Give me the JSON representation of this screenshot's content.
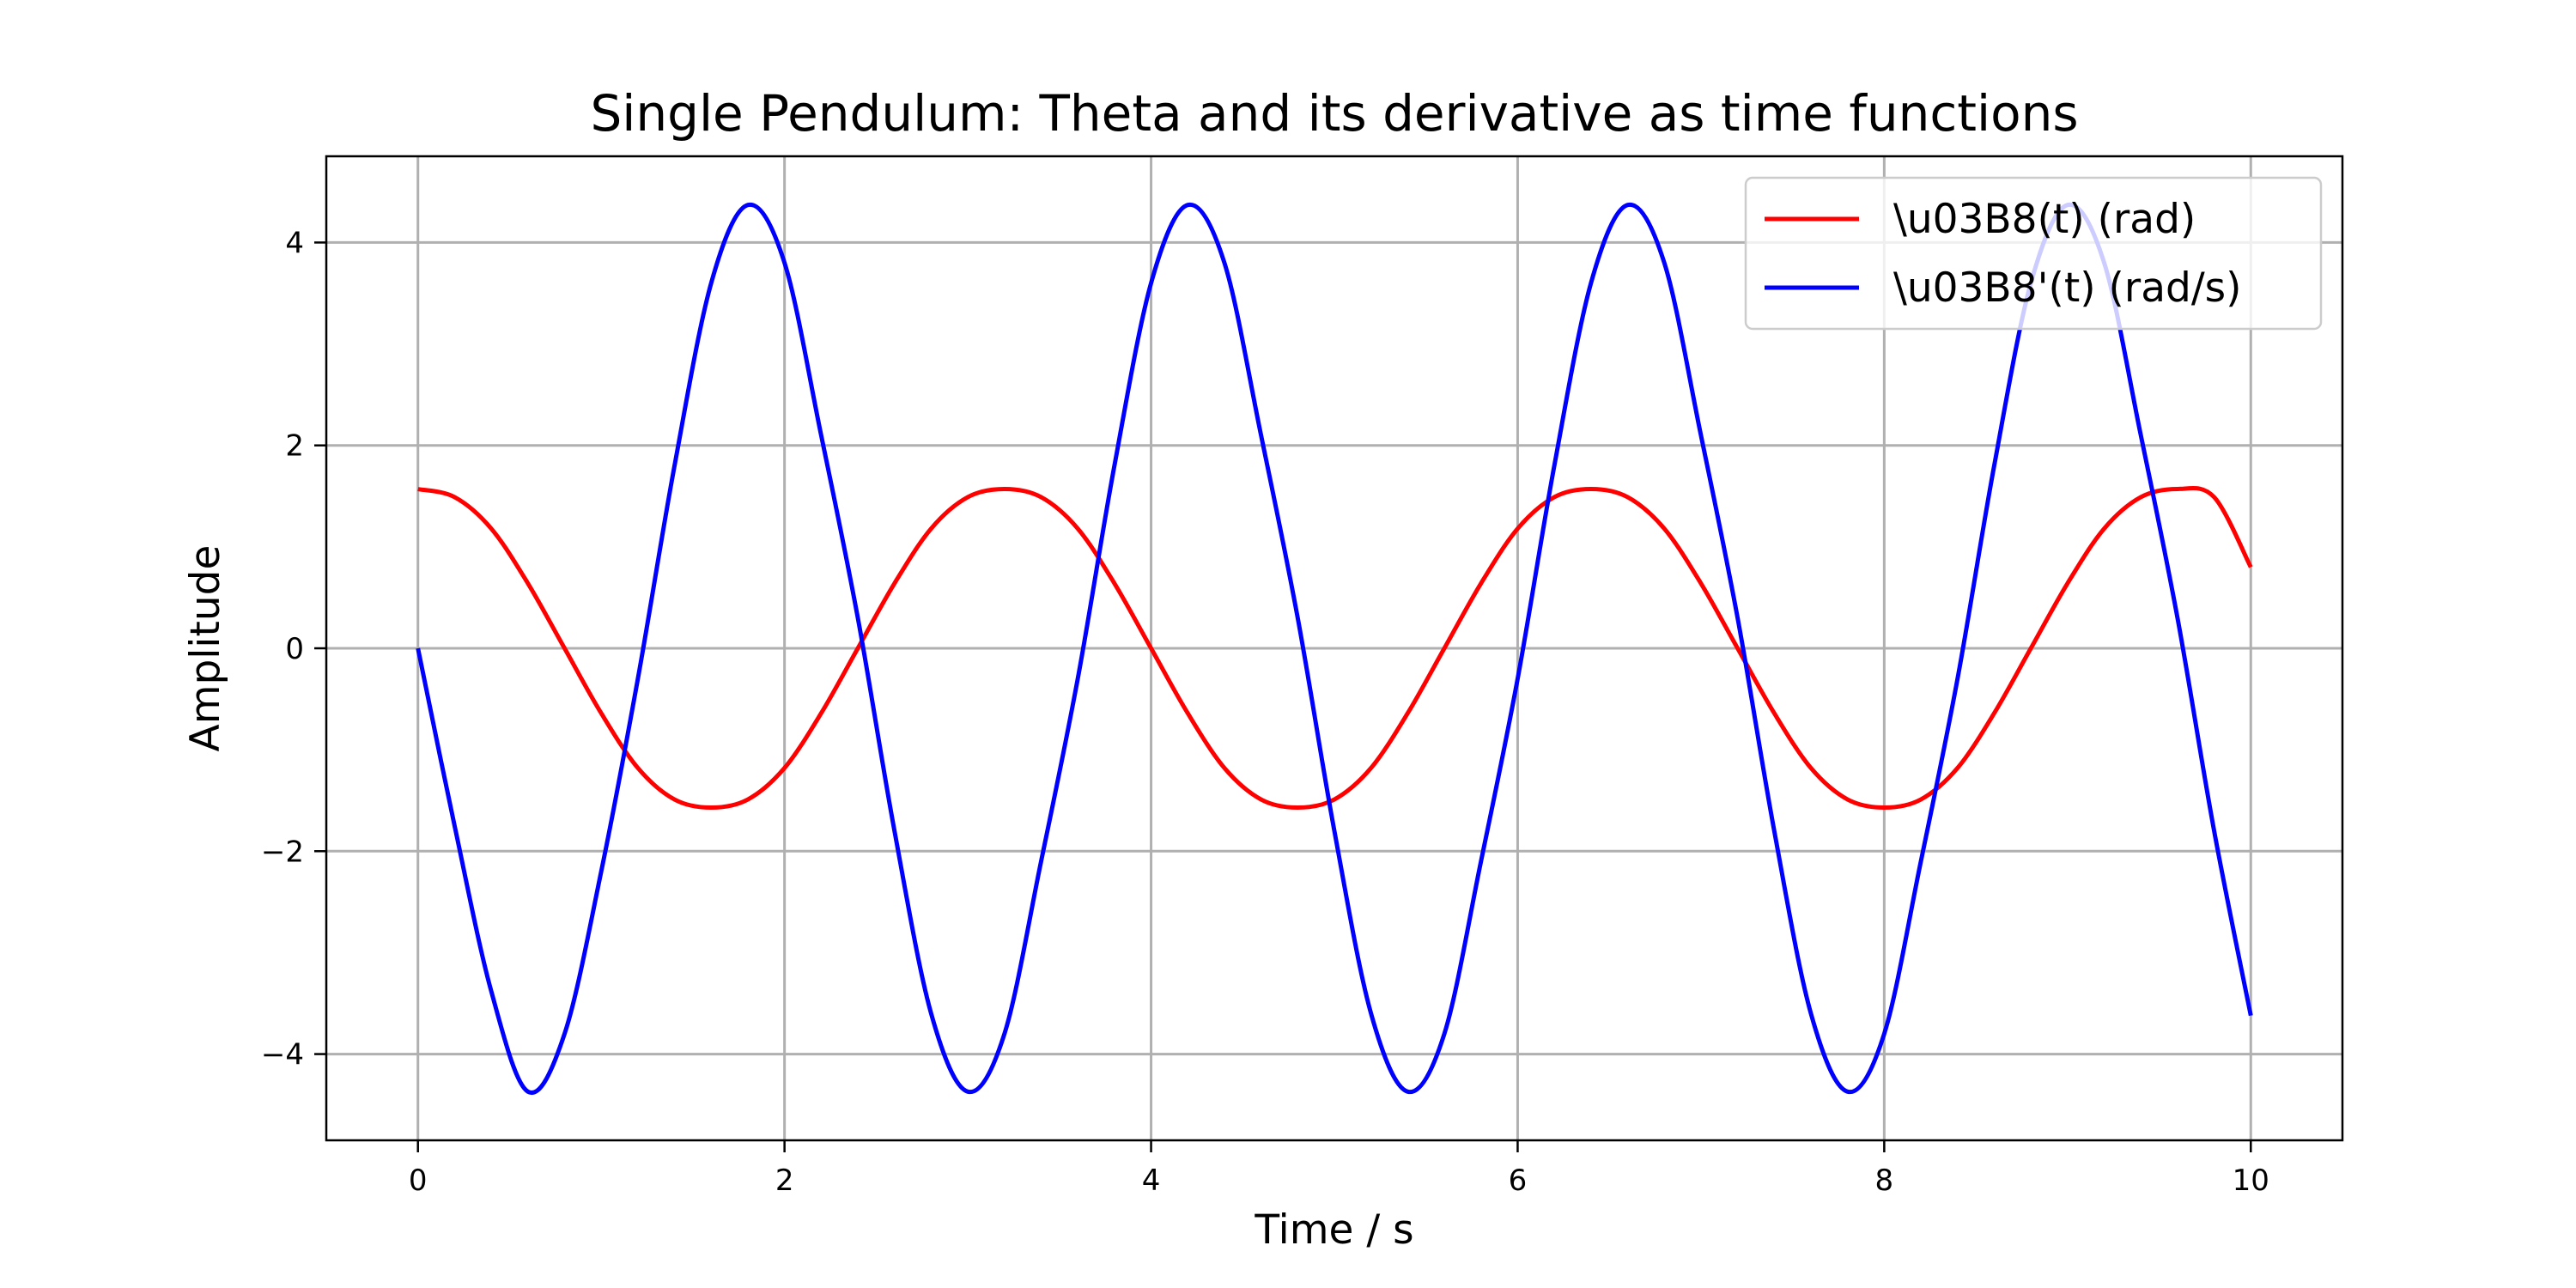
{
  "chart_data": {
    "type": "line",
    "title": "Single Pendulum: Theta and its derivative as time functions",
    "xlabel": "Time / s",
    "ylabel": "Amplitude",
    "xlim": [
      -0.5,
      10.5
    ],
    "ylim": [
      -4.85,
      4.85
    ],
    "xticks": [
      0,
      2,
      4,
      6,
      8,
      10
    ],
    "xtick_labels": [
      "0",
      "2",
      "4",
      "6",
      "8",
      "10"
    ],
    "yticks": [
      -4,
      -2,
      0,
      2,
      4
    ],
    "ytick_labels": [
      "−4",
      "−2",
      "0",
      "2",
      "4"
    ],
    "grid": true,
    "legend_position": "top-right",
    "series": [
      {
        "name": "\\u03B8(t) (rad)",
        "color": "#ff0000",
        "x": [
          0,
          0.2,
          0.4,
          0.6,
          0.8,
          1.0,
          1.2,
          1.4,
          1.6,
          1.8,
          2.0,
          2.2,
          2.4,
          2.6,
          2.8,
          3.0,
          3.2,
          3.4,
          3.6,
          3.8,
          4.0,
          4.2,
          4.4,
          4.6,
          4.8,
          5.0,
          5.2,
          5.4,
          5.6,
          5.8,
          6.0,
          6.2,
          6.4,
          6.6,
          6.8,
          7.0,
          7.2,
          7.4,
          7.6,
          7.8,
          8.0,
          8.2,
          8.4,
          8.6,
          8.8,
          9.0,
          9.2,
          9.4,
          9.6,
          9.8,
          10.0
        ],
        "y": [
          1.57,
          1.49,
          1.18,
          0.64,
          0.0,
          -0.64,
          -1.18,
          -1.49,
          -1.57,
          -1.49,
          -1.18,
          -0.64,
          0.0,
          0.64,
          1.18,
          1.49,
          1.57,
          1.49,
          1.18,
          0.64,
          0.0,
          -0.64,
          -1.18,
          -1.49,
          -1.57,
          -1.49,
          -1.18,
          -0.64,
          0.0,
          0.64,
          1.18,
          1.49,
          1.57,
          1.49,
          1.18,
          0.64,
          0.0,
          -0.64,
          -1.18,
          -1.49,
          -1.57,
          -1.49,
          -1.18,
          -0.64,
          0.0,
          0.64,
          1.18,
          1.49,
          1.57,
          1.49,
          0.8
        ]
      },
      {
        "name": "\\u03B8'(t) (rad/s)",
        "color": "#0000ff",
        "x": [
          0,
          0.2,
          0.4,
          0.6,
          0.8,
          1.0,
          1.2,
          1.4,
          1.6,
          1.8,
          2.0,
          2.2,
          2.4,
          2.6,
          2.8,
          3.0,
          3.2,
          3.4,
          3.6,
          3.8,
          4.0,
          4.2,
          4.4,
          4.6,
          4.8,
          5.0,
          5.2,
          5.4,
          5.6,
          5.8,
          6.0,
          6.2,
          6.4,
          6.6,
          6.8,
          7.0,
          7.2,
          7.4,
          7.6,
          7.8,
          8.0,
          8.2,
          8.4,
          8.6,
          8.8,
          9.0,
          9.2,
          9.4,
          9.6,
          9.8,
          10.0
        ],
        "y": [
          0.0,
          -1.75,
          -3.38,
          -4.37,
          -3.8,
          -2.2,
          -0.3,
          1.8,
          3.6,
          4.37,
          3.8,
          2.1,
          0.3,
          -1.8,
          -3.6,
          -4.37,
          -3.8,
          -2.1,
          -0.3,
          1.8,
          3.6,
          4.37,
          3.8,
          2.1,
          0.3,
          -1.8,
          -3.6,
          -4.37,
          -3.8,
          -2.1,
          -0.3,
          1.8,
          3.6,
          4.37,
          3.8,
          2.1,
          0.3,
          -1.8,
          -3.6,
          -4.37,
          -3.8,
          -2.1,
          -0.3,
          1.8,
          3.6,
          4.37,
          3.8,
          2.1,
          0.3,
          -1.8,
          -3.62
        ]
      }
    ]
  }
}
